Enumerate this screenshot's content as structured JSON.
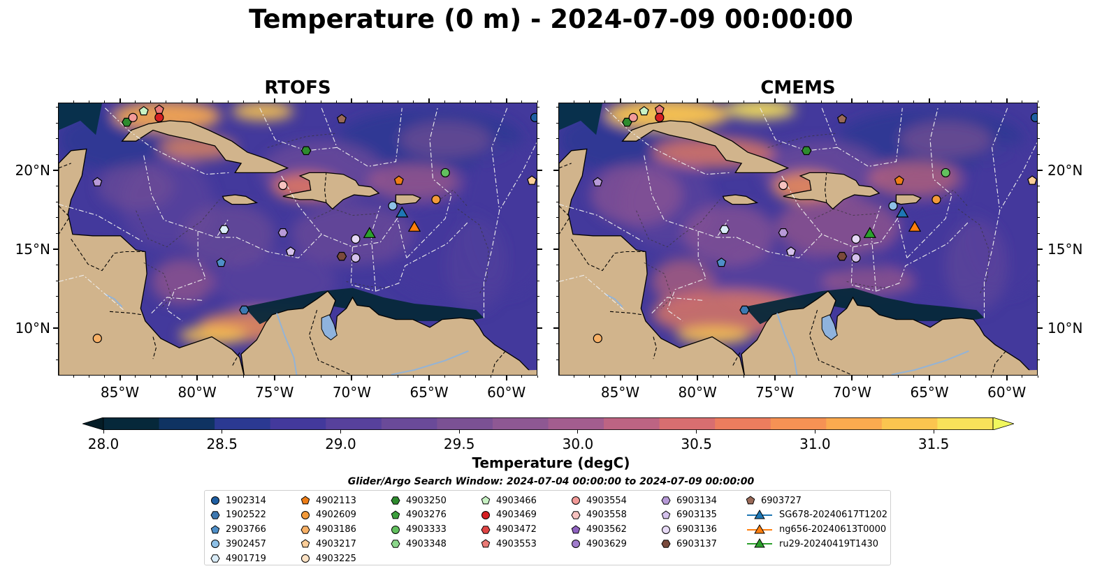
{
  "title": "Temperature (0 m) - 2024-07-09 00:00:00",
  "panels": [
    {
      "title": "RTOFS"
    },
    {
      "title": "CMEMS"
    }
  ],
  "lat_labels": [
    "20°N",
    "15°N",
    "10°N"
  ],
  "lon_labels": [
    "85°W",
    "80°W",
    "75°W",
    "70°W",
    "65°W",
    "60°W"
  ],
  "extent": {
    "lon": [
      -89,
      -58
    ],
    "lat": [
      7,
      24.3
    ]
  },
  "colorbar": {
    "title": "Temperature (degC)",
    "ticks": [
      "28.0",
      "28.5",
      "29.0",
      "29.5",
      "30.0",
      "30.5",
      "31.0",
      "31.5"
    ],
    "range": [
      28.0,
      31.75
    ],
    "extend": "both",
    "colors": [
      "#06283a",
      "#0f3362",
      "#2b3992",
      "#43399c",
      "#57419c",
      "#6a4a99",
      "#7b5194",
      "#8e5893",
      "#a35d8f",
      "#bd6483",
      "#d86e70",
      "#ec7d5e",
      "#f69254",
      "#fbaa4f",
      "#fbc54f",
      "#f8e25a"
    ],
    "below_color": "#041c26",
    "above_color": "#f1f75e"
  },
  "search_window": "Glider/Argo Search Window: 2024-07-04 00:00:00 to 2024-07-09 00:00:00",
  "legend": {
    "columns": [
      [
        {
          "label": "1902314",
          "marker": "circle",
          "color": "#1f5fa3"
        },
        {
          "label": "1902522",
          "marker": "hexagon",
          "color": "#3d78b0"
        },
        {
          "label": "2903766",
          "marker": "pentagon",
          "color": "#4f8fc8"
        },
        {
          "label": "3902457",
          "marker": "circle",
          "color": "#8ec0e6"
        },
        {
          "label": "4901719",
          "marker": "hexagon",
          "color": "#d9ecf8"
        }
      ],
      [
        {
          "label": "4902113",
          "marker": "pentagon",
          "color": "#ee7d16"
        },
        {
          "label": "4902609",
          "marker": "circle",
          "color": "#f39a3a"
        },
        {
          "label": "4903186",
          "marker": "hexagon",
          "color": "#f7b066"
        },
        {
          "label": "4903217",
          "marker": "pentagon",
          "color": "#fbcd98"
        },
        {
          "label": "4903225",
          "marker": "circle",
          "color": "#fde2c4"
        }
      ],
      [
        {
          "label": "4903250",
          "marker": "hexagon",
          "color": "#2e8b2e"
        },
        {
          "label": "4903276",
          "marker": "pentagon",
          "color": "#3d9f3d"
        },
        {
          "label": "4903333",
          "marker": "circle",
          "color": "#62c05e"
        },
        {
          "label": "4903348",
          "marker": "hexagon",
          "color": "#8bd68a"
        }
      ],
      [
        {
          "label": "4903466",
          "marker": "pentagon",
          "color": "#c8f2c4"
        },
        {
          "label": "4903469",
          "marker": "circle",
          "color": "#d62023"
        },
        {
          "label": "4903472",
          "marker": "hexagon",
          "color": "#e04545"
        },
        {
          "label": "4903553",
          "marker": "pentagon",
          "color": "#ea7a76"
        }
      ],
      [
        {
          "label": "4903554",
          "marker": "circle",
          "color": "#f29a98"
        },
        {
          "label": "4903558",
          "marker": "hexagon",
          "color": "#f7c2bf"
        },
        {
          "label": "4903562",
          "marker": "pentagon",
          "color": "#8f62c0"
        },
        {
          "label": "4903629",
          "marker": "circle",
          "color": "#a07ccc"
        }
      ],
      [
        {
          "label": "6903134",
          "marker": "hexagon",
          "color": "#b79ad8"
        },
        {
          "label": "6903135",
          "marker": "pentagon",
          "color": "#d4c1ec"
        },
        {
          "label": "6903136",
          "marker": "circle",
          "color": "#e6d9f5"
        },
        {
          "label": "6903137",
          "marker": "hexagon",
          "color": "#7a4a3c"
        }
      ],
      [
        {
          "label": "6903727",
          "marker": "pentagon",
          "color": "#9a6a58"
        },
        {
          "label": "SG678-20240617T1202",
          "marker": "triangle-line",
          "color": "#1f77b4"
        },
        {
          "label": "ng656-20240613T0000",
          "marker": "triangle-line",
          "color": "#ff7f0e"
        },
        {
          "label": "ru29-20240419T1430",
          "marker": "triangle-line",
          "color": "#2ca02c"
        }
      ]
    ]
  }
}
